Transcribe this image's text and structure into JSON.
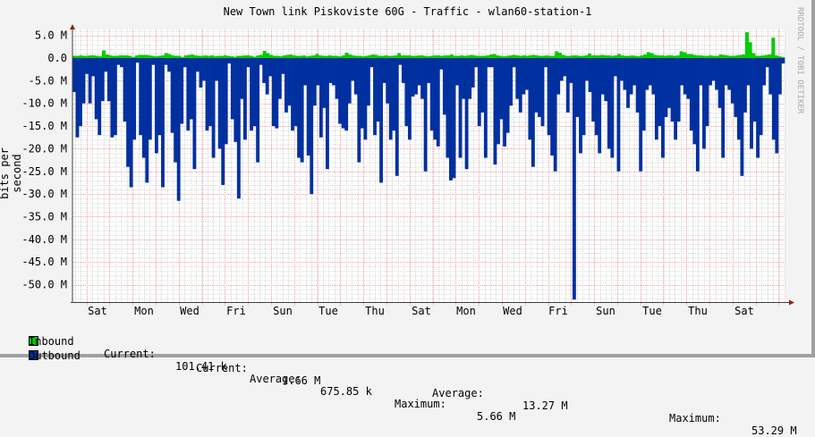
{
  "chart_data": {
    "type": "area",
    "title": "New Town link Piskoviste 60G - Traffic - wlan60-station-1",
    "xlabel": "",
    "ylabel": "bits per second",
    "ylim": [
      -53.5,
      6.5
    ],
    "yticks": [
      "5.0 M",
      "0.0",
      "-5.0 M",
      "-10.0 M",
      "-15.0 M",
      "-20.0 M",
      "-25.0 M",
      "-30.0 M",
      "-35.0 M",
      "-40.0 M",
      "-45.0 M",
      "-50.0 M"
    ],
    "ytick_values": [
      5,
      0,
      -5,
      -10,
      -15,
      -20,
      -25,
      -30,
      -35,
      -40,
      -45,
      -50
    ],
    "xticks": [
      "Sat",
      "Mon",
      "Wed",
      "Fri",
      "Sun",
      "Tue",
      "Thu",
      "Sat",
      "Mon",
      "Wed",
      "Fri",
      "Sun",
      "Tue",
      "Thu",
      "Sat"
    ],
    "grid": true,
    "legend_position": "bottom",
    "watermark": "RRDTOOL / TOBI OETIKER",
    "series": [
      {
        "name": "Inbound",
        "color": "#00cc00",
        "unit": "M bits/s",
        "direction": "positive",
        "values": [
          0.5,
          0.5,
          0.6,
          0.5,
          0.5,
          0.6,
          0.6,
          0.5,
          0.4,
          1.7,
          0.8,
          0.6,
          0.5,
          0.5,
          0.6,
          0.6,
          0.6,
          0.5,
          0.2,
          0.6,
          0.7,
          0.7,
          0.7,
          0.6,
          0.5,
          0.4,
          0.5,
          0.6,
          1.1,
          0.9,
          0.6,
          0.5,
          0.5,
          0.2,
          0.6,
          0.7,
          0.8,
          0.6,
          0.5,
          0.5,
          0.6,
          0.5,
          0.6,
          0.4,
          0.5,
          0.5,
          0.6,
          0.5,
          0.4,
          0.3,
          0.5,
          0.5,
          0.6,
          0.6,
          0.5,
          0.3,
          0.6,
          0.7,
          1.6,
          1.1,
          0.7,
          0.5,
          0.5,
          0.4,
          0.6,
          0.7,
          0.8,
          0.6,
          0.5,
          0.5,
          0.6,
          0.4,
          0.5,
          0.6,
          0.9,
          0.6,
          0.5,
          0.5,
          0.6,
          0.5,
          0.5,
          0.4,
          0.6,
          1.2,
          0.8,
          0.6,
          0.5,
          0.5,
          0.4,
          0.5,
          0.6,
          0.8,
          0.7,
          0.5,
          0.5,
          0.6,
          0.5,
          0.5,
          0.6,
          1.1,
          0.6,
          0.6,
          0.6,
          0.5,
          0.5,
          0.6,
          0.6,
          0.5,
          0.4,
          0.5,
          0.6,
          0.6,
          0.5,
          0.6,
          0.6,
          0.8,
          0.5,
          0.5,
          0.6,
          0.5,
          0.6,
          0.7,
          0.6,
          0.5,
          0.5,
          0.5,
          0.6,
          0.8,
          0.9,
          0.6,
          0.5,
          0.4,
          0.5,
          0.6,
          0.7,
          0.6,
          0.5,
          0.6,
          0.5,
          0.6,
          0.7,
          0.6,
          0.5,
          0.5,
          0.6,
          0.5,
          0.5,
          1.5,
          1.2,
          0.7,
          0.5,
          0.5,
          0.6,
          0.6,
          0.5,
          0.5,
          0.6,
          1.0,
          0.6,
          0.6,
          0.6,
          0.7,
          0.6,
          0.6,
          0.5,
          0.6,
          0.9,
          0.6,
          0.5,
          0.5,
          0.6,
          0.5,
          0.4,
          0.6,
          0.8,
          1.3,
          1.1,
          0.7,
          0.6,
          0.6,
          0.5,
          0.6,
          0.6,
          0.5,
          0.6,
          1.5,
          1.3,
          0.9,
          0.9,
          0.7,
          0.6,
          0.6,
          0.5,
          0.5,
          0.6,
          0.5,
          0.5,
          0.8,
          0.7,
          0.6,
          0.5,
          0.5,
          0.6,
          0.7,
          0.8,
          5.7,
          3.5,
          1.1,
          0.5,
          0.5,
          0.6,
          0.7,
          0.8,
          4.5,
          0.6,
          0.4,
          0.2
        ]
      },
      {
        "name": "Outbound",
        "color": "#0030a0",
        "unit": "M bits/s",
        "direction": "negative",
        "values": [
          7.5,
          17.5,
          15,
          10,
          3.5,
          10,
          4,
          13.5,
          17,
          9.5,
          3,
          9.5,
          17.5,
          17,
          1.5,
          2,
          14,
          24,
          28.5,
          18,
          1,
          17,
          22,
          27.5,
          18,
          1.5,
          21,
          17,
          28.5,
          1.5,
          3,
          16.5,
          23,
          31.5,
          14.5,
          2,
          16,
          13.5,
          24.5,
          3,
          6.5,
          5,
          16,
          15,
          22,
          5,
          20,
          28,
          19,
          1.2,
          13.5,
          18.5,
          31,
          9,
          18,
          2,
          16,
          15,
          23,
          1.5,
          5.5,
          8,
          4,
          15,
          15.5,
          9,
          3.5,
          12,
          10.5,
          16,
          15,
          22,
          23,
          6,
          21.5,
          30,
          10.5,
          6,
          17.5,
          11,
          24.5,
          5.5,
          6,
          9,
          14.5,
          15.5,
          16,
          10,
          5,
          8,
          23,
          15.5,
          18,
          10.5,
          2,
          17,
          14,
          27.5,
          5.5,
          10,
          18,
          16,
          26,
          1.5,
          5.5,
          15,
          18,
          8.5,
          8,
          6,
          9,
          25,
          5.5,
          16,
          18,
          19.5,
          2.5,
          12.5,
          22,
          27,
          26.5,
          6,
          22,
          9,
          24.5,
          9,
          6.5,
          2,
          15,
          12,
          22,
          2,
          2,
          23.5,
          19,
          13.5,
          19.5,
          16.5,
          10.5,
          2,
          9,
          12,
          8,
          7,
          18,
          24,
          12,
          13,
          15,
          2,
          17,
          21.5,
          25,
          8,
          5,
          4,
          12,
          5.5,
          53.3,
          13,
          21,
          17,
          5,
          7.5,
          14,
          17,
          21,
          8,
          9.5,
          20,
          22,
          4,
          25,
          5,
          7,
          11,
          8,
          6,
          12,
          25,
          16,
          7,
          6,
          8,
          18,
          15,
          22,
          13,
          11,
          14,
          18,
          14,
          6,
          8,
          9,
          16,
          19,
          25,
          6,
          20,
          15,
          6,
          5,
          7,
          11,
          22,
          6,
          7,
          10,
          13,
          18,
          26,
          12,
          6,
          20,
          14,
          22,
          17,
          6,
          2,
          8,
          18,
          21,
          8,
          1.2
        ]
      }
    ],
    "legend": [
      {
        "name": "Inbound",
        "color": "#00cc00",
        "current": "101.41 k",
        "average": "675.85 k",
        "maximum": "5.66 M"
      },
      {
        "name": "Outbound",
        "color": "#0030a0",
        "current": "1.66 M",
        "average": "13.27 M",
        "maximum": "53.29 M"
      }
    ]
  },
  "labels": {
    "current": "Current:",
    "average": "Average:",
    "maximum": "Maximum:"
  }
}
